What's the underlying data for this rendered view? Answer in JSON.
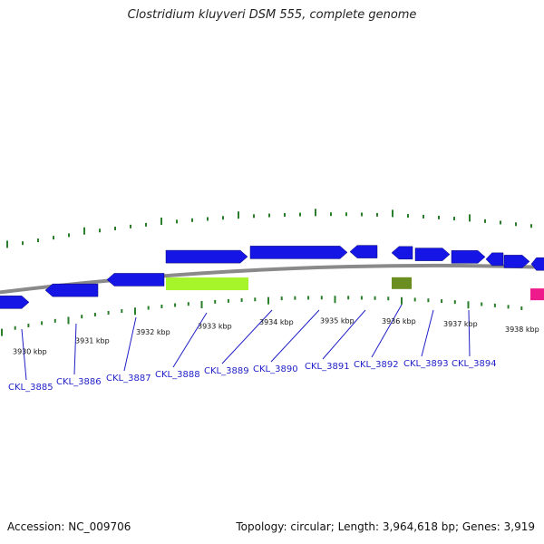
{
  "title": "Clostridium kluyveri DSM 555, complete genome",
  "footer": {
    "accession": "Accession: NC_009706",
    "summary": "Topology: circular; Length: 3,964,618 bp; Genes: 3,919"
  },
  "colors": {
    "backbone": "#8a8a8a",
    "gene_forward": "#1515e6",
    "gene_reverse": "#1515e6",
    "gene_lime": "#a6f52a",
    "gene_olive": "#6b8e23",
    "gene_pink": "#ee1a8c",
    "tick": "#2a7d2a",
    "label": "#1f1fc8"
  },
  "position_labels": [
    "3930 kbp",
    "3931 kbp",
    "3932 kbp",
    "3933 kbp",
    "3934 kbp",
    "3935 kbp",
    "3936 kbp",
    "3937 kbp",
    "3938 kbp"
  ],
  "genes": [
    {
      "label": "CKL_3885"
    },
    {
      "label": "CKL_3886"
    },
    {
      "label": "CKL_3887"
    },
    {
      "label": "CKL_3888"
    },
    {
      "label": "CKL_3889"
    },
    {
      "label": "CKL_3890"
    },
    {
      "label": "CKL_3891"
    },
    {
      "label": "CKL_3892"
    },
    {
      "label": "CKL_3893"
    },
    {
      "label": "CKL_3894"
    }
  ]
}
